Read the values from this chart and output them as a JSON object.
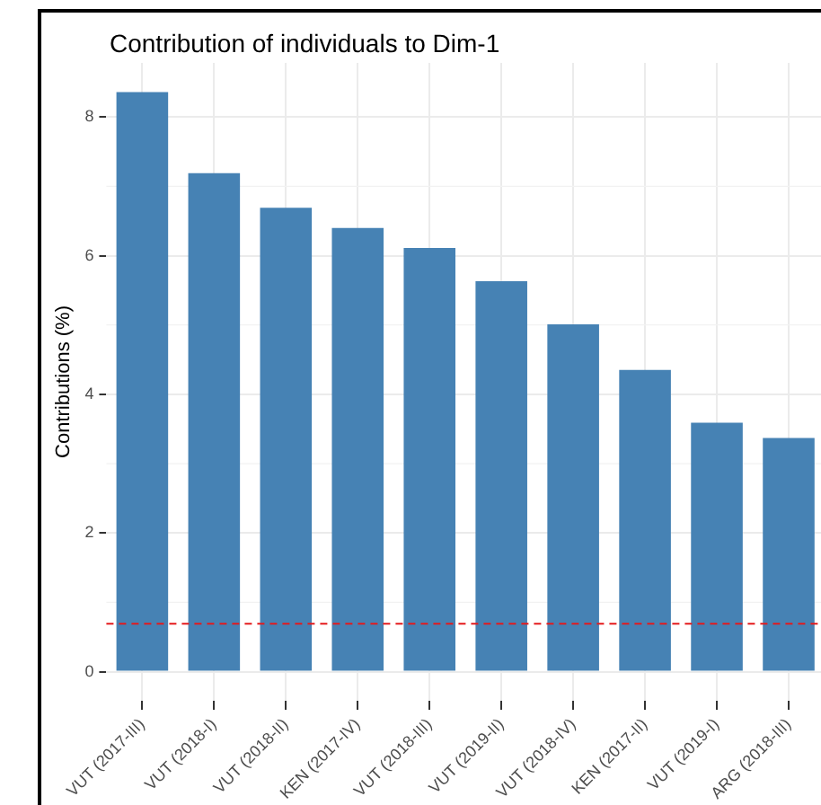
{
  "chart_data": {
    "type": "bar",
    "title": "Contribution of individuals to Dim-1",
    "ylabel": "Contributions (%)",
    "categories": [
      "VUT (2017-III)",
      "VUT (2018-I)",
      "VUT (2018-II)",
      "KEN (2017-IV)",
      "VUT (2018-III)",
      "VUT (2019-II)",
      "VUT (2018-IV)",
      "KEN (2017-II)",
      "VUT (2019-I)",
      "ARG (2018-III)"
    ],
    "values": [
      8.36,
      7.19,
      6.69,
      6.4,
      6.11,
      5.63,
      5.01,
      4.35,
      3.59,
      3.37
    ],
    "color": "#4682b4",
    "ylim": [
      -0.42,
      8.78
    ],
    "yticks": [
      0,
      2,
      4,
      6,
      8
    ],
    "grid": true,
    "legend": false,
    "ref_lines": [
      {
        "axis": "y",
        "value": 0.69,
        "color": "#e41a1c",
        "line_style": "dashed"
      }
    ]
  }
}
